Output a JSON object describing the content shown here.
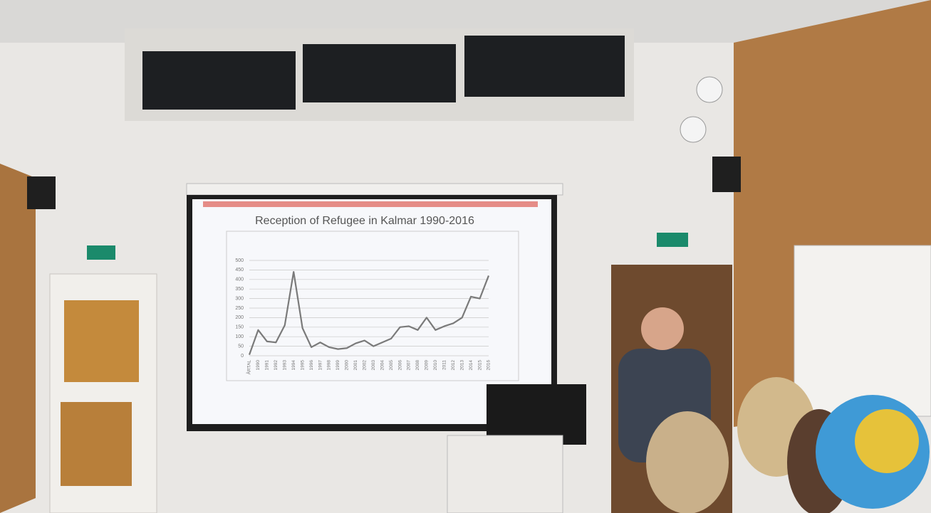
{
  "chart_data": {
    "type": "line",
    "title": "Reception of Refugee in Kalmar 1990-2016",
    "categories": [
      "ÅRTAL",
      "1990",
      "1991",
      "1992",
      "1993",
      "1994",
      "1995",
      "1996",
      "1997",
      "1998",
      "1999",
      "2000",
      "2001",
      "2002",
      "2003",
      "2004",
      "2005",
      "2006",
      "2007",
      "2008",
      "2009",
      "2010",
      "2011",
      "2012",
      "2013",
      "2014",
      "2015",
      "2016"
    ],
    "values": [
      5,
      135,
      75,
      70,
      160,
      440,
      145,
      45,
      70,
      45,
      35,
      40,
      65,
      80,
      50,
      70,
      90,
      150,
      155,
      135,
      200,
      135,
      155,
      170,
      200,
      310,
      300,
      420
    ],
    "color": "#7a7a7a",
    "ylim": [
      0,
      500
    ],
    "yticks": [
      0,
      50,
      100,
      150,
      200,
      250,
      300,
      350,
      400,
      450,
      500
    ],
    "grid": true
  }
}
